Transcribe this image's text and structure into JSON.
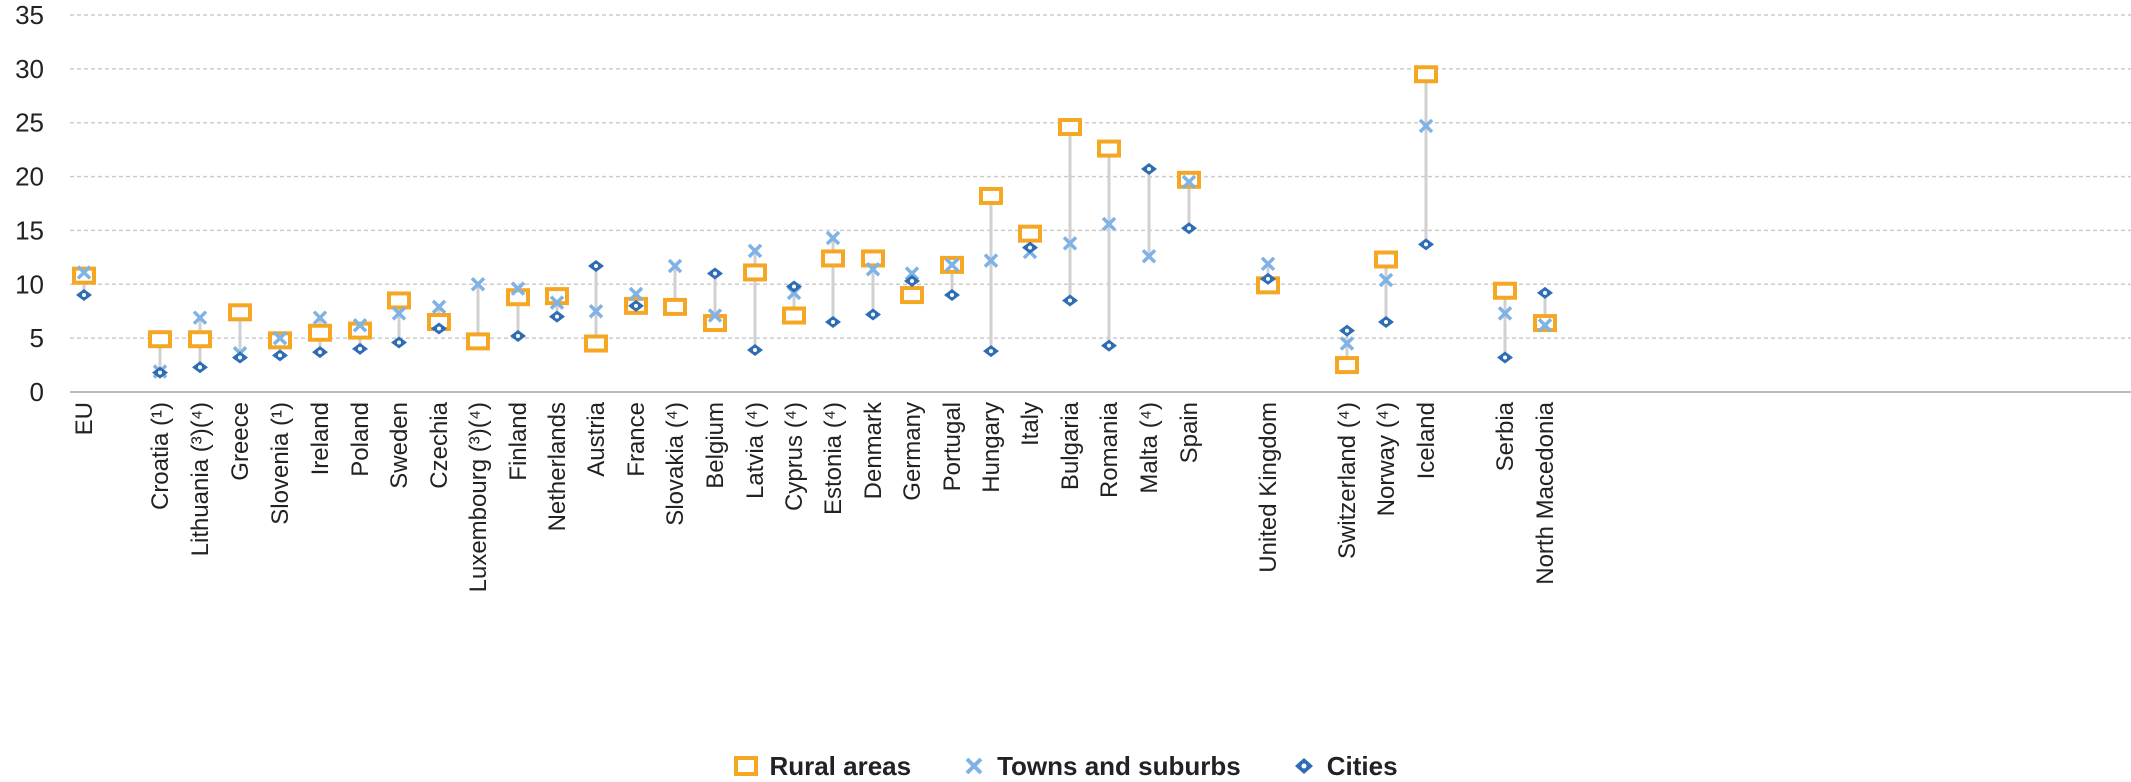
{
  "chart_data": {
    "type": "scatter",
    "ylim": [
      0,
      35
    ],
    "yticks": [
      "0",
      "5",
      "10",
      "15",
      "20",
      "25",
      "30",
      "35"
    ],
    "grid": true,
    "legend_position": "bottom",
    "colors": {
      "rural": "#f5a623",
      "towns": "#7fb2e5",
      "cities": "#2e6db4",
      "range_line": "#d0d0d0",
      "grid": "#cccccc"
    },
    "categories": [
      "EU",
      "Croatia (¹)",
      "Lithuania (³)(⁴)",
      "Greece",
      "Slovenia (¹)",
      "Ireland",
      "Poland",
      "Sweden",
      "Czechia",
      "Luxembourg (³)(⁴)",
      "Finland",
      "Netherlands",
      "Austria",
      "France",
      "Slovakia (⁴)",
      "Belgium",
      "Latvia (⁴)",
      "Cyprus (⁴)",
      "Estonia (⁴)",
      "Denmark",
      "Germany",
      "Portugal",
      "Hungary",
      "Italy",
      "Bulgaria",
      "Romania",
      "Malta (⁴)",
      "Spain",
      "United Kingdom",
      "Switzerland (⁴)",
      "Norway (⁴)",
      "Iceland",
      "Serbia",
      "North Macedonia"
    ],
    "series": [
      {
        "name": "Rural areas",
        "marker": "square",
        "values": [
          10.8,
          4.9,
          4.9,
          7.4,
          4.8,
          5.5,
          5.7,
          8.5,
          6.5,
          4.7,
          8.8,
          8.9,
          4.5,
          8.0,
          7.9,
          6.4,
          11.1,
          7.1,
          12.4,
          12.4,
          9.0,
          11.8,
          18.2,
          14.7,
          24.6,
          22.6,
          null,
          19.7,
          9.9,
          2.5,
          12.3,
          29.5,
          9.4,
          6.4
        ]
      },
      {
        "name": "Towns and suburbs",
        "marker": "cross",
        "values": [
          11.1,
          1.9,
          6.9,
          3.6,
          5.0,
          6.9,
          6.2,
          7.3,
          7.9,
          10.0,
          9.6,
          8.3,
          7.5,
          9.1,
          11.7,
          7.1,
          13.1,
          9.2,
          14.3,
          11.4,
          11.0,
          11.8,
          12.2,
          13.0,
          13.8,
          15.6,
          12.6,
          19.5,
          11.9,
          4.5,
          10.4,
          24.7,
          7.3,
          6.2
        ]
      },
      {
        "name": "Cities",
        "marker": "diamond",
        "values": [
          9.0,
          1.8,
          2.3,
          3.2,
          3.4,
          3.7,
          4.0,
          4.6,
          5.9,
          null,
          5.2,
          7.0,
          11.7,
          8.0,
          null,
          11.0,
          3.9,
          9.8,
          6.5,
          7.2,
          10.3,
          9.0,
          3.8,
          13.4,
          8.5,
          4.3,
          20.7,
          15.2,
          10.5,
          5.7,
          6.5,
          13.7,
          3.2,
          9.2
        ]
      }
    ]
  }
}
